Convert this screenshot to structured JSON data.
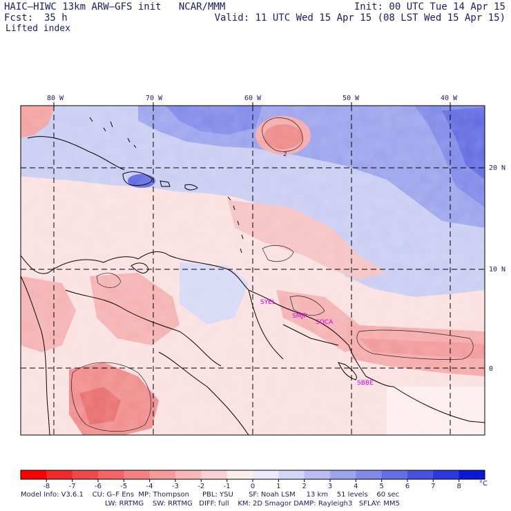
{
  "header": {
    "title": "HAIC–HIWC 13km ARW–GFS init   NCAR/MMM",
    "init": "Init: 00 UTC Tue 14 Apr 15",
    "fcst_label": "Fcst:",
    "fcst_value": "35 h",
    "valid": "Valid: 11 UTC Wed 15 Apr 15 (08 LST Wed 15 Apr 15)",
    "field": "Lifted index"
  },
  "map": {
    "lon_labels": [
      "80 W",
      "70 W",
      "60 W",
      "50 W",
      "40 W"
    ],
    "lat_labels": [
      "20 N",
      "10 N",
      "0"
    ],
    "contour_label": "2",
    "stations": [
      "SYEL",
      "SMJP",
      "SOCA",
      "SBBE"
    ],
    "colors": {
      "negative_strong": "#e53a3a",
      "negative_weak": "#f5b8b8",
      "positive_weak": "#c8ccf2",
      "positive_strong": "#4a58d8",
      "coast": "#000000",
      "station": "#e000e0"
    }
  },
  "colorbar": {
    "labels": [
      "-8",
      "-7",
      "-6",
      "-5",
      "-4",
      "-3",
      "-2",
      "-1",
      "0",
      "1",
      "2",
      "3",
      "4",
      "5",
      "6",
      "7",
      "8"
    ],
    "unit": "°C",
    "colors": [
      "#ff0000",
      "#f32a2a",
      "#f34848",
      "#f56464",
      "#f67f7f",
      "#f79a9a",
      "#f9b7b7",
      "#fbd2d2",
      "#fdeeee",
      "#ebebfb",
      "#d3d6f7",
      "#b9bdf2",
      "#9da3ee",
      "#8189ea",
      "#646fe6",
      "#4653e2",
      "#2a38de",
      "#0a18da"
    ]
  },
  "footer": {
    "line1": "Model Info: V3.6.1    CU: G–F Ens  MP: Thompson      PBL: YSU       SF: Noah LSM     13 km    51 levels    60 sec",
    "line2": "LW: RRTMG    SW: RRTMG   DIFF: full    KM: 2D Smagor DAMP: Rayleigh3   SFLAY: MM5"
  }
}
